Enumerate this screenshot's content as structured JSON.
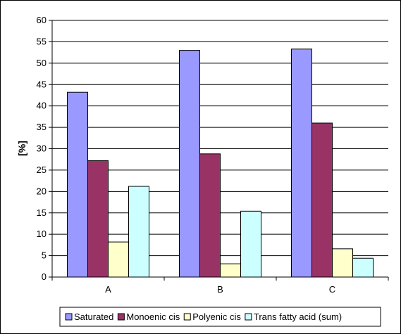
{
  "chart_data": {
    "type": "bar",
    "categories": [
      "A",
      "B",
      "C"
    ],
    "series": [
      {
        "name": "Saturated",
        "values": [
          43.2,
          53.0,
          53.3
        ],
        "color": "#9999ff"
      },
      {
        "name": "Monoenic cis",
        "values": [
          27.2,
          28.8,
          36.0
        ],
        "color": "#993366"
      },
      {
        "name": "Polyenic cis",
        "values": [
          8.2,
          3.1,
          6.6
        ],
        "color": "#ffffcc"
      },
      {
        "name": "Trans fatty acid (sum)",
        "values": [
          21.2,
          15.4,
          4.4
        ],
        "color": "#ccffff"
      }
    ],
    "ylabel": "[%]",
    "ylim": [
      0,
      60
    ],
    "yticks": [
      0,
      5,
      10,
      15,
      20,
      25,
      30,
      35,
      40,
      45,
      50,
      55,
      60
    ],
    "grid": true,
    "legend": "bottom"
  }
}
